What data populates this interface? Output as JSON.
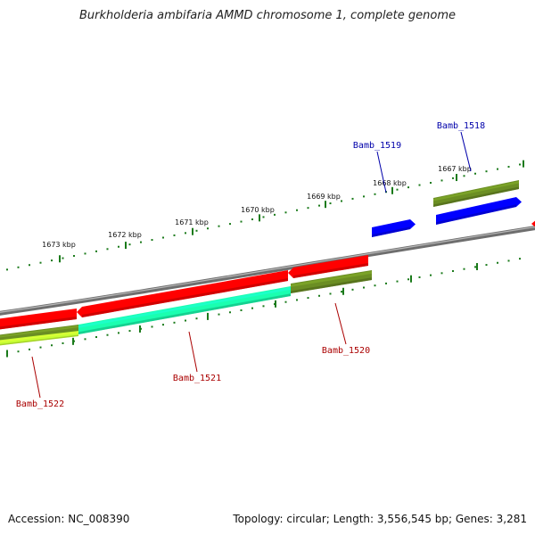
{
  "title": "Burkholderia ambifaria AMMD chromosome 1, complete genome",
  "footer": {
    "accession": "Accession: NC_008390",
    "summary": "Topology: circular; Length: 3,556,545 bp; Genes: 3,281"
  },
  "colors": {
    "forward_label": "#0000aa",
    "reverse_label": "#aa0000",
    "backbone": "#808080",
    "ticks": "#1a7a1a"
  },
  "scale_labels": [
    "1673 kbp",
    "1672 kbp",
    "1671 kbp",
    "1670 kbp",
    "1669 kbp",
    "1668 kbp",
    "1667 kbp"
  ],
  "genes": [
    {
      "label": "Bamb_1518",
      "strand": "forward",
      "color": "#0000ff"
    },
    {
      "label": "Bamb_1519",
      "strand": "forward",
      "color": "#0000ff"
    },
    {
      "label": "Bamb_1520",
      "strand": "reverse",
      "color": "#ff0000"
    },
    {
      "label": "Bamb_1521",
      "strand": "reverse",
      "color": "#ff0000"
    },
    {
      "label": "Bamb_1522",
      "strand": "reverse",
      "color": "#ff0000"
    }
  ],
  "features": [
    {
      "color": "#6b8e23"
    },
    {
      "color": "#6b8e23"
    },
    {
      "color": "#1affb0"
    },
    {
      "color": "#6b8e23"
    },
    {
      "color": "#c8ff33"
    }
  ]
}
